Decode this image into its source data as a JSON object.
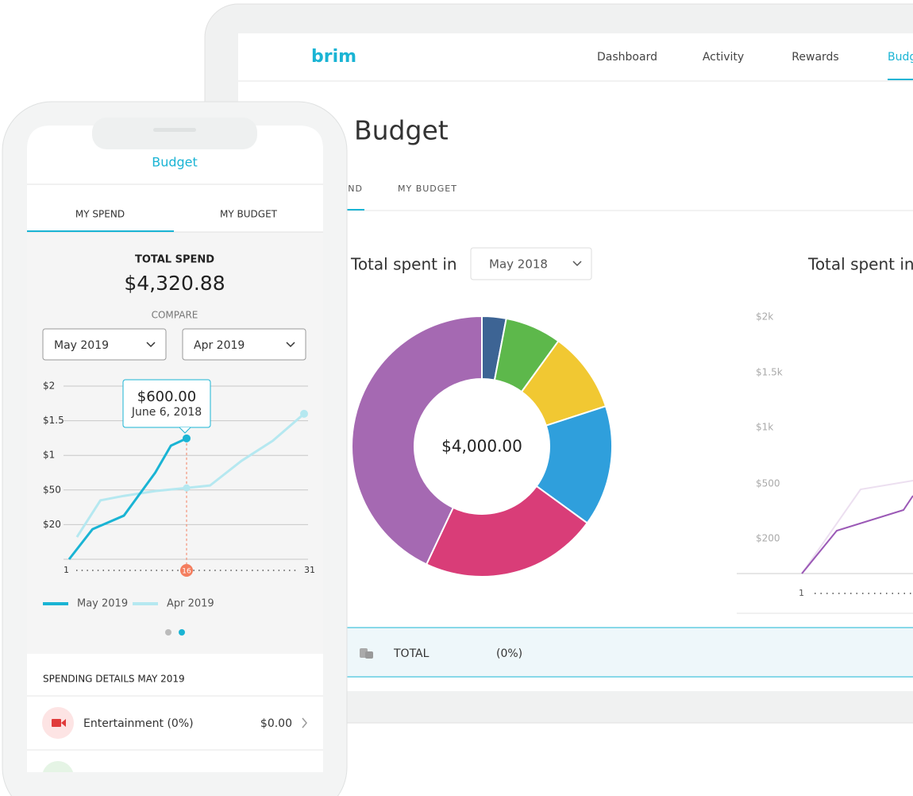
{
  "tablet": {
    "logo": "brim",
    "nav": [
      "Dashboard",
      "Activity",
      "Rewards",
      "Budget"
    ],
    "title": "Budget",
    "tabs": [
      "MY SPEND",
      "MY BUDGET"
    ],
    "spent_label": "Total spent in",
    "month": "May 2018",
    "donut": {
      "type": "pie",
      "center_label": "$4,000.00",
      "values": [
        3,
        7,
        10,
        15,
        22,
        43
      ],
      "colors": [
        "#3d6494",
        "#5db84b",
        "#f1c832",
        "#2f9fdc",
        "#d93d78",
        "#a569b2"
      ]
    },
    "trend": {
      "title": "Total spent in",
      "yticks": [
        "$2k",
        "$1.5k",
        "$1k",
        "$500",
        "$200"
      ],
      "x_start": "1"
    },
    "total": {
      "label": "TOTAL",
      "percent": "(0%)"
    }
  },
  "phone": {
    "title": "Budget",
    "tabs": [
      "MY SPEND",
      "MY BUDGET"
    ],
    "total_label": "TOTAL SPEND",
    "total_value": "$4,320.88",
    "compare_label": "COMPARE",
    "compare": [
      "May 2019",
      "Apr 2019"
    ],
    "chart": {
      "type": "line",
      "xlim": [
        1,
        31
      ],
      "ylim": [
        0,
        5
      ],
      "xticks": [
        1,
        16,
        31
      ],
      "yticks": [
        {
          "value": 5,
          "label": "$2"
        },
        {
          "value": 4,
          "label": "$1.5"
        },
        {
          "value": 3,
          "label": "$1"
        },
        {
          "value": 2,
          "label": "$50"
        },
        {
          "value": 1,
          "label": "$20"
        }
      ],
      "series": [
        {
          "name": "May 2019",
          "color": "#1ab4d4",
          "x": [
            1,
            4,
            8,
            12,
            14,
            16
          ],
          "values": [
            0,
            0.87,
            1.26,
            2.5,
            3.28,
            3.49
          ]
        },
        {
          "name": "Apr 2019",
          "color": "#b5e8f0",
          "x": [
            2,
            5,
            8,
            12,
            16,
            19,
            23,
            27,
            31
          ],
          "values": [
            0.64,
            1.7,
            1.83,
            1.97,
            2.06,
            2.13,
            2.84,
            3.42,
            4.2
          ]
        }
      ],
      "tooltip": {
        "value": "$600.00",
        "date": "June 6, 2018"
      }
    },
    "details_title": "SPENDING DETAILS MAY 2019",
    "details": [
      {
        "label": "Entertainment (0%)",
        "amount": "$0.00"
      }
    ]
  }
}
